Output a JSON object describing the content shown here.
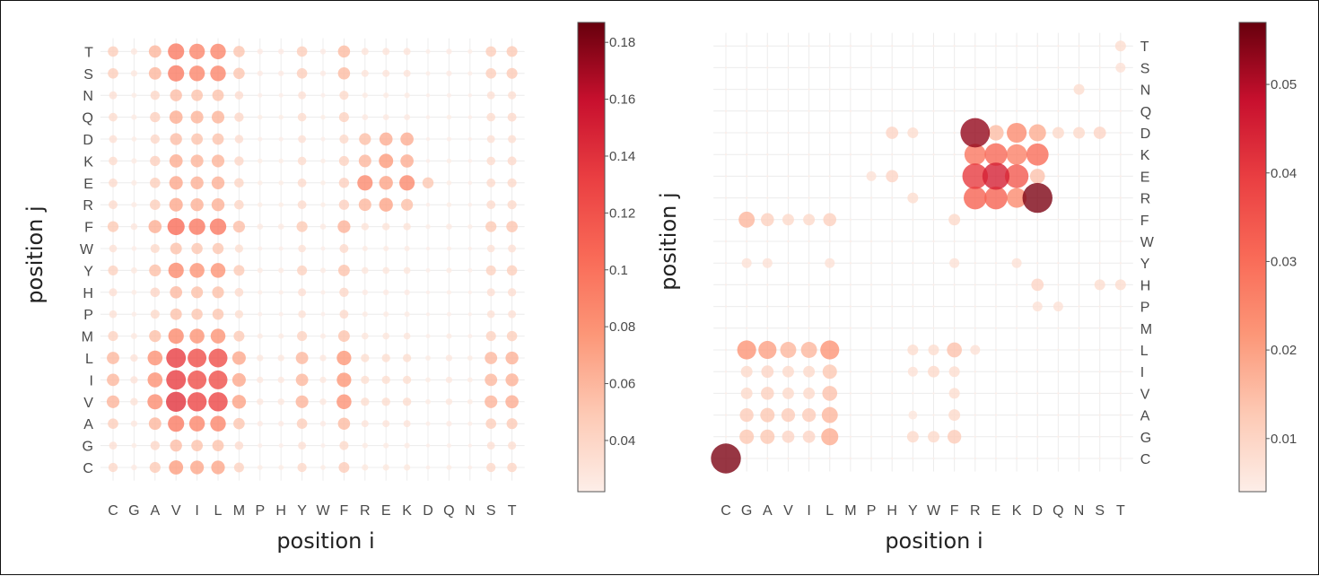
{
  "chart_data": [
    {
      "type": "scatter",
      "subtype": "bubble-matrix",
      "xlabel": "position i",
      "ylabel": "position j",
      "x_categories": [
        "C",
        "G",
        "A",
        "V",
        "I",
        "L",
        "M",
        "P",
        "H",
        "Y",
        "W",
        "F",
        "R",
        "E",
        "K",
        "D",
        "Q",
        "N",
        "S",
        "T"
      ],
      "y_categories": [
        "C",
        "G",
        "A",
        "V",
        "I",
        "L",
        "M",
        "P",
        "H",
        "Y",
        "W",
        "F",
        "R",
        "E",
        "K",
        "D",
        "Q",
        "N",
        "S",
        "T"
      ],
      "y_axis_position": "left",
      "grid": true,
      "colorbar": {
        "position": "right",
        "min": 0.022,
        "max": 0.187,
        "ticks": [
          "0.04",
          "0.06",
          "0.08",
          "0.1",
          "0.12",
          "0.14",
          "0.16",
          "0.18"
        ]
      },
      "colorscale": [
        "#fdeee8",
        "#fdc9b4",
        "#fc9778",
        "#f96a57",
        "#ea3f42",
        "#c8102e",
        "#67000d"
      ],
      "row_scales": {
        "C": 0.45,
        "G": 0.3,
        "A": 0.62,
        "V": 1.0,
        "I": 0.95,
        "L": 0.95,
        "M": 0.55,
        "P": 0.28,
        "H": 0.32,
        "Y": 0.55,
        "W": 0.28,
        "F": 0.7,
        "R": 0.4,
        "E": 0.4,
        "K": 0.38,
        "D": 0.3,
        "Q": 0.38,
        "N": 0.3,
        "S": 0.62,
        "T": 0.62
      },
      "col_scales": {
        "C": 0.22,
        "G": 0.06,
        "A": 0.34,
        "V": 0.64,
        "I": 0.58,
        "L": 0.58,
        "M": 0.27,
        "P": 0.04,
        "H": 0.04,
        "Y": 0.22,
        "W": 0.04,
        "F": 0.32,
        "R": 0.08,
        "E": 0.08,
        "K": 0.08,
        "D": 0.02,
        "Q": 0.04,
        "N": 0.02,
        "S": 0.22,
        "T": 0.24
      },
      "base": 0.02,
      "overrides": [
        {
          "x": "R",
          "y": "E",
          "value": 0.085
        },
        {
          "x": "E",
          "y": "E",
          "value": 0.07
        },
        {
          "x": "K",
          "y": "E",
          "value": 0.085
        },
        {
          "x": "D",
          "y": "E",
          "value": 0.05
        },
        {
          "x": "R",
          "y": "K",
          "value": 0.06
        },
        {
          "x": "E",
          "y": "K",
          "value": 0.075
        },
        {
          "x": "K",
          "y": "K",
          "value": 0.065
        },
        {
          "x": "R",
          "y": "D",
          "value": 0.055
        },
        {
          "x": "E",
          "y": "D",
          "value": 0.065
        },
        {
          "x": "K",
          "y": "D",
          "value": 0.065
        },
        {
          "x": "E",
          "y": "R",
          "value": 0.07
        },
        {
          "x": "R",
          "y": "R",
          "value": 0.06
        },
        {
          "x": "K",
          "y": "R",
          "value": 0.055
        }
      ]
    },
    {
      "type": "scatter",
      "subtype": "bubble-matrix",
      "xlabel": "position i",
      "ylabel": "position j",
      "x_categories": [
        "C",
        "G",
        "A",
        "V",
        "I",
        "L",
        "M",
        "P",
        "H",
        "Y",
        "W",
        "F",
        "R",
        "E",
        "K",
        "D",
        "Q",
        "N",
        "S",
        "T"
      ],
      "y_categories": [
        "C",
        "G",
        "A",
        "V",
        "I",
        "L",
        "M",
        "P",
        "H",
        "Y",
        "W",
        "F",
        "R",
        "E",
        "K",
        "D",
        "Q",
        "N",
        "S",
        "T"
      ],
      "y_axis_position": "right",
      "grid": true,
      "colorbar": {
        "position": "right",
        "min": 0.004,
        "max": 0.057,
        "ticks": [
          "0.01",
          "0.02",
          "0.03",
          "0.04",
          "0.05"
        ]
      },
      "colorscale": [
        "#fdeee8",
        "#fdc9b4",
        "#fc9778",
        "#f96a57",
        "#ea3f42",
        "#c8102e",
        "#67000d"
      ],
      "base": 0.003,
      "points": [
        {
          "x": "C",
          "y": "C",
          "value": 0.055
        },
        {
          "x": "G",
          "y": "L",
          "value": 0.022
        },
        {
          "x": "A",
          "y": "L",
          "value": 0.02
        },
        {
          "x": "V",
          "y": "L",
          "value": 0.016
        },
        {
          "x": "I",
          "y": "L",
          "value": 0.016
        },
        {
          "x": "L",
          "y": "L",
          "value": 0.022
        },
        {
          "x": "G",
          "y": "G",
          "value": 0.013
        },
        {
          "x": "A",
          "y": "G",
          "value": 0.013
        },
        {
          "x": "V",
          "y": "G",
          "value": 0.01
        },
        {
          "x": "I",
          "y": "G",
          "value": 0.01
        },
        {
          "x": "L",
          "y": "G",
          "value": 0.018
        },
        {
          "x": "Y",
          "y": "G",
          "value": 0.009
        },
        {
          "x": "W",
          "y": "G",
          "value": 0.009
        },
        {
          "x": "F",
          "y": "G",
          "value": 0.012
        },
        {
          "x": "G",
          "y": "A",
          "value": 0.012
        },
        {
          "x": "A",
          "y": "A",
          "value": 0.013
        },
        {
          "x": "V",
          "y": "A",
          "value": 0.012
        },
        {
          "x": "I",
          "y": "A",
          "value": 0.012
        },
        {
          "x": "L",
          "y": "A",
          "value": 0.016
        },
        {
          "x": "F",
          "y": "A",
          "value": 0.009
        },
        {
          "x": "G",
          "y": "V",
          "value": 0.009
        },
        {
          "x": "A",
          "y": "V",
          "value": 0.011
        },
        {
          "x": "V",
          "y": "V",
          "value": 0.009
        },
        {
          "x": "I",
          "y": "V",
          "value": 0.009
        },
        {
          "x": "L",
          "y": "V",
          "value": 0.014
        },
        {
          "x": "F",
          "y": "V",
          "value": 0.008
        },
        {
          "x": "G",
          "y": "I",
          "value": 0.009
        },
        {
          "x": "A",
          "y": "I",
          "value": 0.01
        },
        {
          "x": "V",
          "y": "I",
          "value": 0.009
        },
        {
          "x": "I",
          "y": "I",
          "value": 0.009
        },
        {
          "x": "L",
          "y": "I",
          "value": 0.013
        },
        {
          "x": "W",
          "y": "I",
          "value": 0.009
        },
        {
          "x": "F",
          "y": "I",
          "value": 0.008
        },
        {
          "x": "F",
          "y": "L",
          "value": 0.014
        },
        {
          "x": "Y",
          "y": "L",
          "value": 0.008
        },
        {
          "x": "W",
          "y": "L",
          "value": 0.008
        },
        {
          "x": "R",
          "y": "L",
          "value": 0.007
        },
        {
          "x": "G",
          "y": "F",
          "value": 0.016
        },
        {
          "x": "A",
          "y": "F",
          "value": 0.011
        },
        {
          "x": "V",
          "y": "F",
          "value": 0.009
        },
        {
          "x": "I",
          "y": "F",
          "value": 0.009
        },
        {
          "x": "L",
          "y": "F",
          "value": 0.011
        },
        {
          "x": "F",
          "y": "F",
          "value": 0.009
        },
        {
          "x": "G",
          "y": "Y",
          "value": 0.007
        },
        {
          "x": "A",
          "y": "Y",
          "value": 0.007
        },
        {
          "x": "L",
          "y": "Y",
          "value": 0.007
        },
        {
          "x": "F",
          "y": "Y",
          "value": 0.007
        },
        {
          "x": "R",
          "y": "D",
          "value": 0.053
        },
        {
          "x": "E",
          "y": "D",
          "value": 0.015
        },
        {
          "x": "K",
          "y": "D",
          "value": 0.024
        },
        {
          "x": "D",
          "y": "D",
          "value": 0.018
        },
        {
          "x": "R",
          "y": "K",
          "value": 0.028
        },
        {
          "x": "E",
          "y": "K",
          "value": 0.031
        },
        {
          "x": "K",
          "y": "K",
          "value": 0.026
        },
        {
          "x": "D",
          "y": "K",
          "value": 0.03
        },
        {
          "x": "R",
          "y": "E",
          "value": 0.04
        },
        {
          "x": "E",
          "y": "E",
          "value": 0.045
        },
        {
          "x": "K",
          "y": "E",
          "value": 0.034
        },
        {
          "x": "D",
          "y": "E",
          "value": 0.014
        },
        {
          "x": "R",
          "y": "R",
          "value": 0.032
        },
        {
          "x": "E",
          "y": "R",
          "value": 0.032
        },
        {
          "x": "K",
          "y": "R",
          "value": 0.024
        },
        {
          "x": "D",
          "y": "R",
          "value": 0.055
        },
        {
          "x": "H",
          "y": "D",
          "value": 0.01
        },
        {
          "x": "Y",
          "y": "D",
          "value": 0.008
        },
        {
          "x": "Q",
          "y": "D",
          "value": 0.009
        },
        {
          "x": "N",
          "y": "D",
          "value": 0.009
        },
        {
          "x": "S",
          "y": "D",
          "value": 0.01
        },
        {
          "x": "H",
          "y": "E",
          "value": 0.01
        },
        {
          "x": "P",
          "y": "E",
          "value": 0.007
        },
        {
          "x": "Y",
          "y": "R",
          "value": 0.008
        },
        {
          "x": "D",
          "y": "H",
          "value": 0.01
        },
        {
          "x": "S",
          "y": "H",
          "value": 0.008
        },
        {
          "x": "T",
          "y": "H",
          "value": 0.008
        },
        {
          "x": "D",
          "y": "P",
          "value": 0.007
        },
        {
          "x": "Q",
          "y": "P",
          "value": 0.007
        },
        {
          "x": "N",
          "y": "N",
          "value": 0.008
        },
        {
          "x": "T",
          "y": "T",
          "value": 0.008
        },
        {
          "x": "T",
          "y": "S",
          "value": 0.007
        },
        {
          "x": "K",
          "y": "Y",
          "value": 0.007
        },
        {
          "x": "Y",
          "y": "I",
          "value": 0.007
        },
        {
          "x": "Y",
          "y": "A",
          "value": 0.006
        }
      ]
    }
  ]
}
